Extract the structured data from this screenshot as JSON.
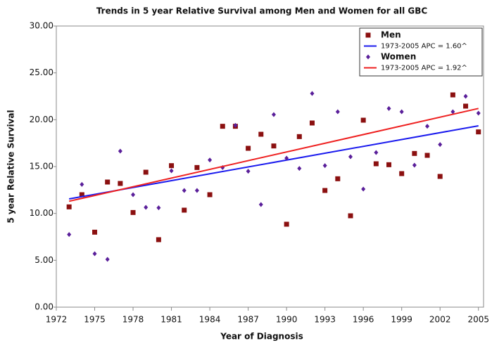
{
  "chart_data": {
    "type": "scatter",
    "title": "Trends in 5 year Relative Survival among Men and Women for all GBC",
    "x_label": "Year of Diagnosis",
    "y_label": "5 year Relative Survival",
    "xlim": [
      1972,
      2005.4
    ],
    "ylim": [
      0,
      30
    ],
    "xticks": [
      1972,
      1975,
      1978,
      1981,
      1984,
      1987,
      1990,
      1993,
      1996,
      1999,
      2002,
      2005
    ],
    "yticks": [
      {
        "value": 0,
        "label": "0.00"
      },
      {
        "value": 5,
        "label": "5.00"
      },
      {
        "value": 10,
        "label": "10.00"
      },
      {
        "value": 15,
        "label": "15.00"
      },
      {
        "value": 20,
        "label": "20.00"
      },
      {
        "value": 25,
        "label": "25.00"
      },
      {
        "value": 30,
        "label": "30.00"
      }
    ],
    "grid": false,
    "legend": "top-right",
    "series": [
      {
        "name": "Men",
        "mark": "square",
        "color": "#8b1010",
        "x": [
          1973,
          1974,
          1975,
          1976,
          1977,
          1978,
          1979,
          1980,
          1981,
          1982,
          1983,
          1984,
          1985,
          1986,
          1987,
          1988,
          1989,
          1990,
          1991,
          1992,
          1993,
          1994,
          1995,
          1996,
          1997,
          1998,
          1999,
          2000,
          2001,
          2002,
          2003,
          2004,
          2005
        ],
        "values": [
          10.7,
          12.0,
          8.0,
          13.35,
          13.2,
          10.1,
          14.4,
          7.2,
          15.1,
          10.35,
          14.9,
          12.0,
          19.3,
          19.3,
          16.95,
          18.45,
          17.2,
          8.85,
          18.2,
          19.65,
          12.45,
          13.7,
          9.75,
          19.95,
          15.3,
          15.2,
          14.25,
          16.4,
          16.2,
          13.95,
          22.65,
          21.45,
          18.7
        ]
      },
      {
        "name": "1973-2005 APC  = 1.60^",
        "mark": "line",
        "color": "#1a1aee",
        "x": [
          1973,
          2005
        ],
        "values": [
          11.55,
          19.35
        ]
      },
      {
        "name": "Women",
        "mark": "diamond",
        "color": "#5a1f9a",
        "x": [
          1973,
          1974,
          1975,
          1976,
          1977,
          1978,
          1979,
          1980,
          1981,
          1982,
          1983,
          1984,
          1985,
          1986,
          1987,
          1988,
          1989,
          1990,
          1991,
          1992,
          1993,
          1994,
          1995,
          1996,
          1997,
          1998,
          1999,
          2000,
          2001,
          2002,
          2003,
          2004,
          2005
        ],
        "values": [
          7.75,
          13.1,
          5.7,
          5.1,
          16.65,
          12.0,
          10.65,
          10.6,
          14.55,
          12.45,
          12.45,
          15.7,
          14.9,
          19.4,
          14.5,
          10.95,
          20.55,
          15.9,
          14.8,
          22.8,
          15.1,
          20.85,
          16.05,
          12.6,
          16.5,
          21.2,
          20.85,
          15.15,
          19.3,
          17.35,
          20.85,
          22.5,
          20.7
        ]
      },
      {
        "name": "1973-2005 APC  = 1.92^",
        "mark": "line",
        "color": "#ee2020",
        "x": [
          1973,
          2005
        ],
        "values": [
          11.3,
          21.2
        ]
      }
    ]
  }
}
